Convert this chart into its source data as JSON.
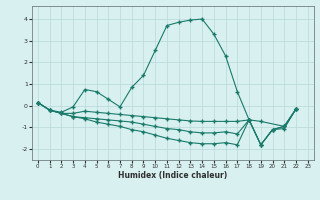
{
  "xlabel": "Humidex (Indice chaleur)",
  "background_color": "#d8f0f0",
  "line_color": "#1a7a6a",
  "grid_color": "#b8d8d8",
  "xlim": [
    -0.5,
    23.5
  ],
  "ylim": [
    -2.5,
    4.6
  ],
  "yticks": [
    -2,
    -1,
    0,
    1,
    2,
    3,
    4
  ],
  "xticks": [
    0,
    1,
    2,
    3,
    4,
    5,
    6,
    7,
    8,
    9,
    10,
    11,
    12,
    13,
    14,
    15,
    16,
    17,
    18,
    19,
    20,
    21,
    22,
    23
  ],
  "s1_x": [
    0,
    1,
    2,
    3,
    4,
    5,
    6,
    7,
    8,
    9,
    10,
    11,
    12,
    13,
    14,
    15,
    16,
    17,
    18,
    19,
    20,
    21,
    22
  ],
  "s1_y": [
    0.15,
    -0.2,
    -0.3,
    -0.05,
    0.75,
    0.65,
    0.3,
    -0.05,
    0.85,
    1.4,
    2.55,
    3.7,
    3.85,
    3.95,
    4.0,
    3.3,
    2.3,
    0.65,
    -0.65,
    -1.8,
    -1.1,
    -1.05,
    -0.15
  ],
  "s2_x": [
    0,
    1,
    2,
    3,
    4,
    5,
    6,
    7,
    8,
    9,
    10,
    11,
    12,
    13,
    14,
    15,
    16,
    17,
    18,
    19,
    21,
    22
  ],
  "s2_y": [
    0.15,
    -0.2,
    -0.35,
    -0.35,
    -0.25,
    -0.3,
    -0.35,
    -0.4,
    -0.45,
    -0.5,
    -0.55,
    -0.6,
    -0.65,
    -0.7,
    -0.72,
    -0.72,
    -0.72,
    -0.72,
    -0.65,
    -0.72,
    -0.95,
    -0.15
  ],
  "s3_x": [
    0,
    1,
    2,
    3,
    4,
    5,
    6,
    7,
    8,
    9,
    10,
    11,
    12,
    13,
    14,
    15,
    16,
    17,
    18,
    19,
    20,
    21,
    22
  ],
  "s3_y": [
    0.15,
    -0.2,
    -0.35,
    -0.5,
    -0.55,
    -0.6,
    -0.65,
    -0.7,
    -0.75,
    -0.85,
    -0.95,
    -1.05,
    -1.1,
    -1.2,
    -1.25,
    -1.25,
    -1.2,
    -1.3,
    -0.65,
    -1.8,
    -1.1,
    -0.95,
    -0.15
  ],
  "s4_x": [
    0,
    1,
    2,
    3,
    4,
    5,
    6,
    7,
    8,
    9,
    10,
    11,
    12,
    13,
    14,
    15,
    16,
    17,
    18,
    19,
    20,
    21,
    22
  ],
  "s4_y": [
    0.15,
    -0.2,
    -0.35,
    -0.5,
    -0.6,
    -0.75,
    -0.85,
    -0.95,
    -1.1,
    -1.2,
    -1.35,
    -1.5,
    -1.6,
    -1.7,
    -1.75,
    -1.75,
    -1.7,
    -1.8,
    -0.65,
    -1.8,
    -1.1,
    -0.95,
    -0.15
  ]
}
